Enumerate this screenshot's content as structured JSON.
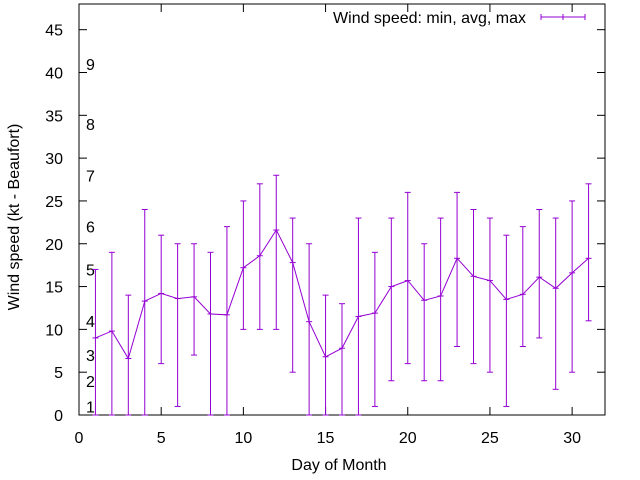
{
  "chart_data": {
    "type": "line",
    "title": "",
    "xlabel": "Day of Month",
    "ylabel": "Wind speed (kt - Beaufort)",
    "xlim": [
      0,
      32
    ],
    "ylim": [
      0,
      48
    ],
    "xticks": [
      "0",
      "5",
      "10",
      "15",
      "20",
      "25",
      "30"
    ],
    "yticks": [
      "0",
      "5",
      "10",
      "15",
      "20",
      "25",
      "30",
      "35",
      "40",
      "45"
    ],
    "grid": false,
    "legend_position": "top-right",
    "series": [
      {
        "name": "Wind speed: min, avg, max",
        "color": "#9400d3",
        "x": [
          1,
          2,
          3,
          4,
          5,
          6,
          7,
          8,
          9,
          10,
          11,
          12,
          13,
          14,
          15,
          16,
          17,
          18,
          19,
          20,
          21,
          22,
          23,
          24,
          25,
          26,
          27,
          28,
          29,
          30,
          31
        ],
        "avg": [
          9,
          9.8,
          6.6,
          13.3,
          14.2,
          13.6,
          13.8,
          11.8,
          11.7,
          17.2,
          18.6,
          21.6,
          17.8,
          10.9,
          6.8,
          7.8,
          11.5,
          11.9,
          15,
          15.7,
          13.4,
          13.9,
          18.3,
          16.2,
          15.7,
          13.5,
          14.1,
          16.1,
          14.8,
          16.6,
          18.3
        ],
        "min": [
          0,
          0,
          0,
          0,
          6,
          1,
          7,
          0,
          0,
          10,
          10,
          10,
          5,
          0,
          0,
          0,
          0,
          1,
          4,
          6,
          4,
          4,
          8,
          6,
          5,
          1,
          8,
          9,
          3,
          5,
          11
        ],
        "max": [
          17,
          19,
          14,
          24,
          21,
          20,
          20,
          19,
          22,
          25,
          27,
          28,
          23,
          20,
          14,
          13,
          23,
          19,
          23,
          26,
          20,
          23,
          26,
          24,
          23,
          21,
          22,
          24,
          23,
          25,
          27
        ]
      }
    ],
    "beaufort_scale": [
      {
        "label": "1",
        "y": 1
      },
      {
        "label": "2",
        "y": 4
      },
      {
        "label": "3",
        "y": 7
      },
      {
        "label": "4",
        "y": 11
      },
      {
        "label": "5",
        "y": 17
      },
      {
        "label": "6",
        "y": 22
      },
      {
        "label": "7",
        "y": 28
      },
      {
        "label": "8",
        "y": 34
      },
      {
        "label": "9",
        "y": 41
      }
    ]
  }
}
